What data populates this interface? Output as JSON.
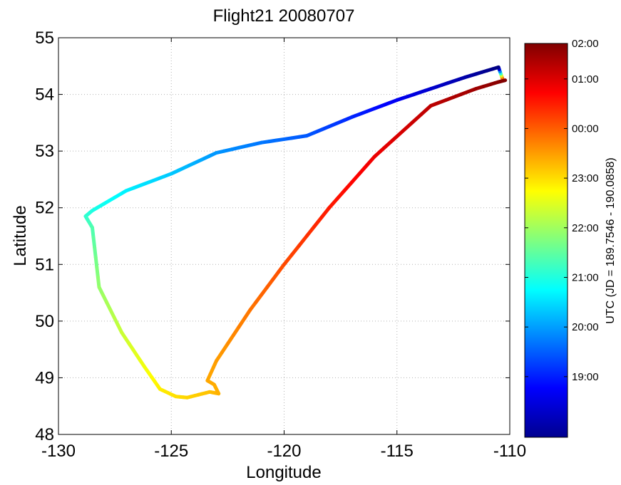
{
  "chart_data": {
    "type": "line",
    "title": "Flight21 20080707",
    "xlabel": "Longitude",
    "ylabel": "Latitude",
    "xlim": [
      -130,
      -110
    ],
    "ylim": [
      48,
      55
    ],
    "x_ticks": [
      -130,
      -125,
      -120,
      -115,
      -110
    ],
    "y_ticks": [
      48,
      49,
      50,
      51,
      52,
      53,
      54,
      55
    ],
    "grid": true,
    "colormap": "jet",
    "colorbar": {
      "label": "UTC (JD = 189.7546 - 190.0858)",
      "tick_labels": [
        "19:00",
        "20:00",
        "21:00",
        "22:00",
        "23:00",
        "00:00",
        "01:00",
        "02:00"
      ],
      "tick_fractions": [
        0.154,
        0.28,
        0.406,
        0.532,
        0.658,
        0.784,
        0.91,
        1.0
      ]
    },
    "series": [
      {
        "points": [
          {
            "x": -110.3,
            "y": 54.25,
            "t": 1.0
          },
          {
            "x": -110.5,
            "y": 54.48,
            "t": 0.0
          },
          {
            "x": -112.0,
            "y": 54.3,
            "t": 0.04
          },
          {
            "x": -113.5,
            "y": 54.1,
            "t": 0.075
          },
          {
            "x": -115.0,
            "y": 53.9,
            "t": 0.11
          },
          {
            "x": -117.0,
            "y": 53.6,
            "t": 0.16
          },
          {
            "x": -119.0,
            "y": 53.27,
            "t": 0.21
          },
          {
            "x": -121.0,
            "y": 53.15,
            "t": 0.24
          },
          {
            "x": -123.0,
            "y": 52.97,
            "t": 0.27
          },
          {
            "x": -125.0,
            "y": 52.6,
            "t": 0.32
          },
          {
            "x": -127.0,
            "y": 52.3,
            "t": 0.36
          },
          {
            "x": -128.5,
            "y": 51.95,
            "t": 0.4
          },
          {
            "x": -128.8,
            "y": 51.85,
            "t": 0.42
          },
          {
            "x": -128.5,
            "y": 51.65,
            "t": 0.45
          },
          {
            "x": -128.2,
            "y": 50.6,
            "t": 0.52
          },
          {
            "x": -127.2,
            "y": 49.8,
            "t": 0.57
          },
          {
            "x": -126.2,
            "y": 49.2,
            "t": 0.61
          },
          {
            "x": -125.5,
            "y": 48.8,
            "t": 0.64
          },
          {
            "x": -124.8,
            "y": 48.67,
            "t": 0.655
          },
          {
            "x": -124.3,
            "y": 48.65,
            "t": 0.665
          },
          {
            "x": -123.3,
            "y": 48.75,
            "t": 0.685
          },
          {
            "x": -122.9,
            "y": 48.72,
            "t": 0.7
          },
          {
            "x": -123.1,
            "y": 48.88,
            "t": 0.705
          },
          {
            "x": -123.4,
            "y": 48.95,
            "t": 0.71
          },
          {
            "x": -123.0,
            "y": 49.3,
            "t": 0.72
          },
          {
            "x": -121.5,
            "y": 50.2,
            "t": 0.76
          },
          {
            "x": -120.0,
            "y": 51.0,
            "t": 0.8
          },
          {
            "x": -118.0,
            "y": 52.0,
            "t": 0.85
          },
          {
            "x": -116.0,
            "y": 52.9,
            "t": 0.89
          },
          {
            "x": -113.5,
            "y": 53.8,
            "t": 0.94
          },
          {
            "x": -111.5,
            "y": 54.1,
            "t": 0.97
          },
          {
            "x": -110.5,
            "y": 54.22,
            "t": 0.99
          },
          {
            "x": -110.2,
            "y": 54.25,
            "t": 1.0
          }
        ]
      }
    ]
  }
}
